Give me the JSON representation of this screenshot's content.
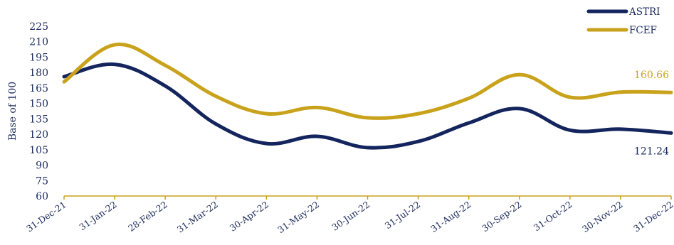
{
  "chart_data": {
    "type": "line",
    "title": "",
    "xlabel": "",
    "ylabel": "Base of 100",
    "x": [
      "31-Dec-21",
      "31-Jan-22",
      "28-Feb-22",
      "31-Mar-22",
      "30-Apr-22",
      "31-May-22",
      "30-Jun-22",
      "31-Jul-22",
      "31-Aug-22",
      "30-Sep-22",
      "31-Oct-22",
      "30-Nov-22",
      "31-Dec-22"
    ],
    "ylim": [
      60,
      225
    ],
    "yticks": [
      60,
      75,
      90,
      105,
      120,
      135,
      150,
      165,
      180,
      195,
      210,
      225
    ],
    "grid": false,
    "legend_position": "top-right",
    "series": [
      {
        "name": "ASTRI",
        "color": "#14255e",
        "values": [
          176,
          188,
          167,
          130,
          111,
          118,
          107,
          113,
          131,
          145,
          124,
          125,
          121.24
        ],
        "end_label": "121.24"
      },
      {
        "name": "FCEF",
        "color": "#c9a21c",
        "values": [
          171,
          207,
          187,
          157,
          140,
          146,
          136,
          140,
          155,
          178,
          156,
          161,
          160.66
        ],
        "end_label": "160.66"
      }
    ]
  }
}
